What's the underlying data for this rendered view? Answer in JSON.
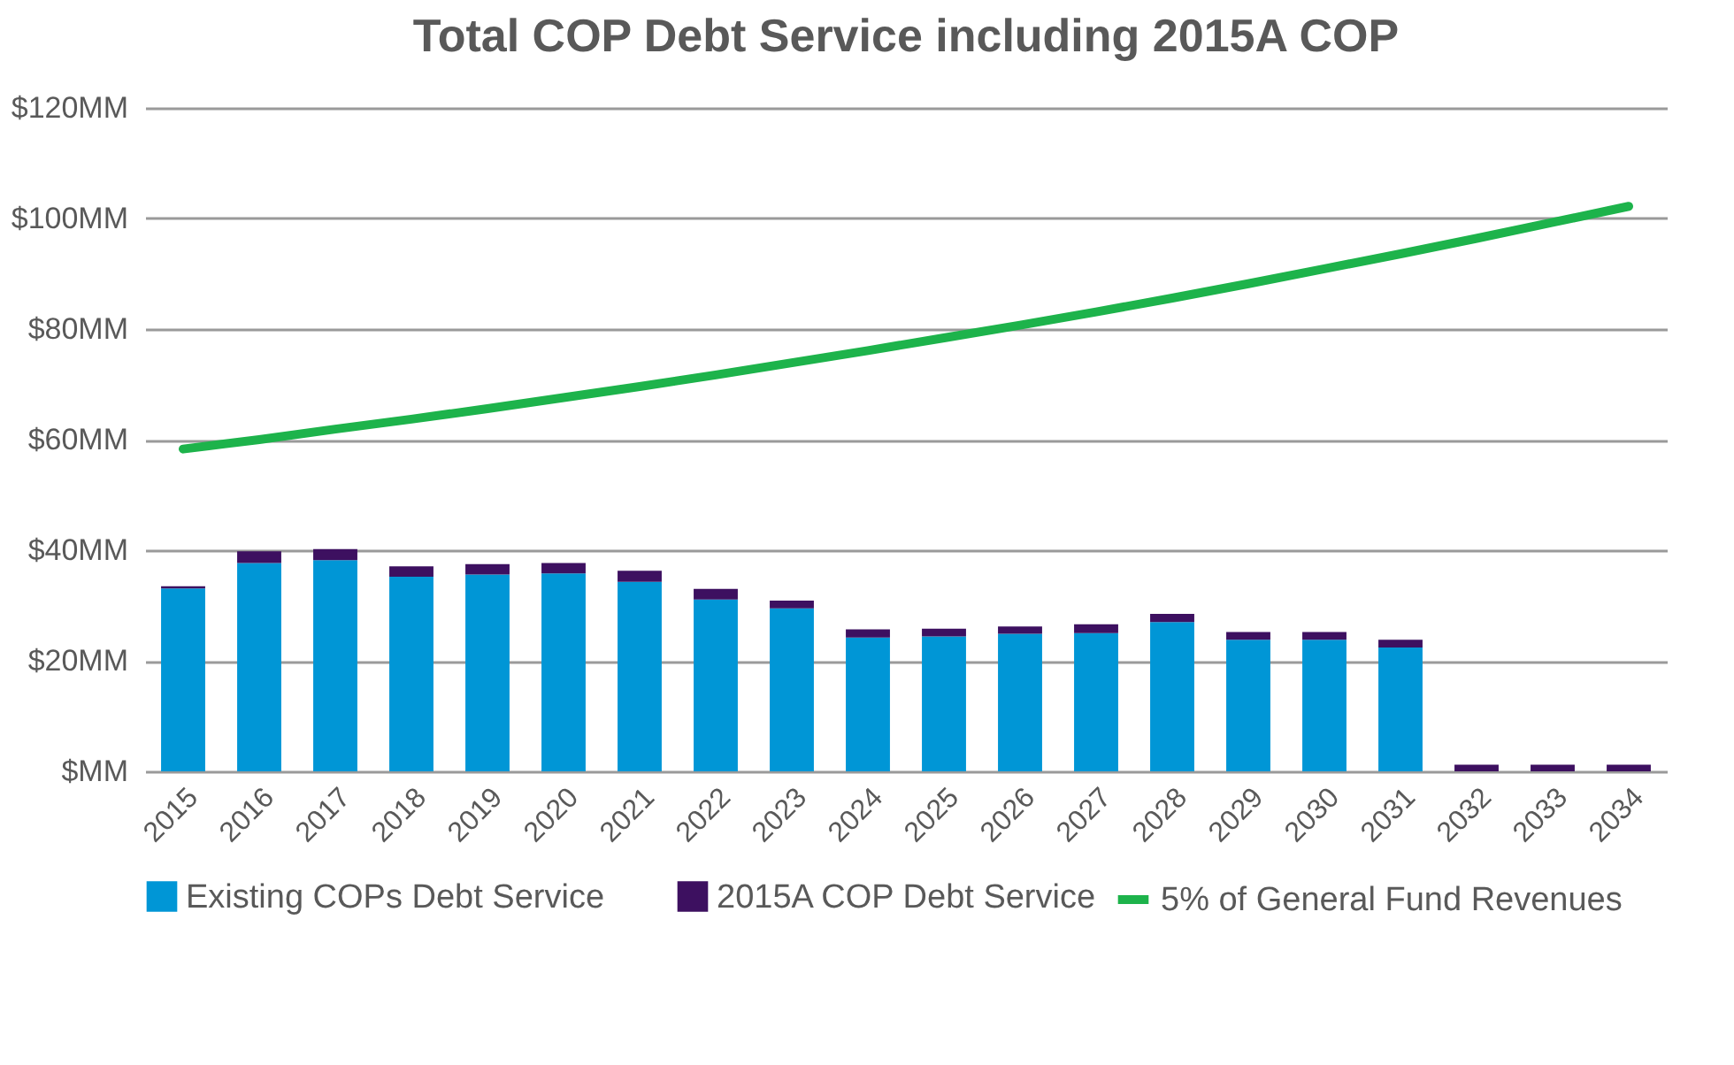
{
  "chart_data": {
    "type": "bar",
    "stacked": true,
    "title": "Total COP Debt Service including 2015A COP",
    "categories": [
      "2015",
      "2016",
      "2017",
      "2018",
      "2019",
      "2020",
      "2021",
      "2022",
      "2023",
      "2024",
      "2025",
      "2026",
      "2027",
      "2028",
      "2029",
      "2030",
      "2031",
      "2032",
      "2033",
      "2034"
    ],
    "series": [
      {
        "name": "Existing COPs Debt Service",
        "color": "#0096d6",
        "values": [
          33.1,
          37.7,
          38.2,
          35.2,
          35.6,
          35.8,
          34.3,
          31.1,
          29.5,
          24.2,
          24.4,
          24.9,
          25.0,
          27.0,
          23.8,
          23.8,
          22.4,
          0,
          0,
          0
        ]
      },
      {
        "name": "2015A COP Debt Service",
        "color": "#3d1060",
        "values": [
          0.4,
          2.1,
          2.0,
          1.9,
          1.9,
          1.9,
          2.0,
          1.9,
          1.4,
          1.5,
          1.4,
          1.3,
          1.6,
          1.5,
          1.4,
          1.4,
          1.4,
          1.2,
          1.2,
          1.2
        ]
      },
      {
        "name": "5% of General Fund Revenues",
        "type": "line",
        "color": "#1db34b",
        "values": [
          58.3,
          60.0,
          61.9,
          63.7,
          65.6,
          67.6,
          69.6,
          71.7,
          73.9,
          76.1,
          78.4,
          80.7,
          83.1,
          85.6,
          88.2,
          90.9,
          93.6,
          96.4,
          99.3,
          102.2
        ]
      }
    ],
    "ylim": [
      0,
      120
    ],
    "yticks": [
      {
        "value": 0,
        "label": "$MM"
      },
      {
        "value": 20,
        "label": "$20MM"
      },
      {
        "value": 40,
        "label": "$40MM"
      },
      {
        "value": 60,
        "label": "$60MM"
      },
      {
        "value": 80,
        "label": "$80MM"
      },
      {
        "value": 100,
        "label": "$100MM"
      },
      {
        "value": 120,
        "label": "$120MM"
      }
    ],
    "grid": "y",
    "legend": "bottom"
  }
}
